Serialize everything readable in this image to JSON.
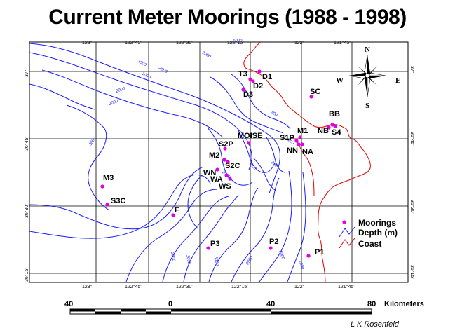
{
  "title": "Current Meter Moorings (1988 - 1998)",
  "credit": "L K Rosenfeld",
  "colors": {
    "mooring": "#e000e0",
    "depth": "#1a1aff",
    "coast": "#e00000"
  },
  "top_ticks": [
    "123°",
    "122°45'",
    "122°30'",
    "122°15'",
    "122°",
    "121°45'"
  ],
  "bottom_ticks": [
    "123°",
    "122°45'",
    "122°30'",
    "122°15'",
    "122°",
    "121°45'"
  ],
  "left_ticks": [
    "37°",
    "36°45'",
    "36°30'",
    "36°15'"
  ],
  "right_ticks": [
    "37°",
    "36°45'",
    "36°30'",
    "36°15'"
  ],
  "compass": {
    "n": "N",
    "s": "S",
    "e": "E",
    "w": "W"
  },
  "contour_labels": [
    "1000",
    "2000",
    "2000",
    "1000",
    "2000",
    "1000",
    "1000",
    "3000",
    "2000",
    "3000",
    "3000",
    "2000",
    "1000",
    "1000",
    "1000",
    "200",
    "200",
    "100",
    "300"
  ],
  "moorings": [
    {
      "name": "D1"
    },
    {
      "name": "T3"
    },
    {
      "name": "D2"
    },
    {
      "name": "D3"
    },
    {
      "name": "SC"
    },
    {
      "name": "BB"
    },
    {
      "name": "NB"
    },
    {
      "name": "S4"
    },
    {
      "name": "M1"
    },
    {
      "name": "S1P"
    },
    {
      "name": "NN"
    },
    {
      "name": "NA"
    },
    {
      "name": "MOISE"
    },
    {
      "name": "S2P"
    },
    {
      "name": "M2"
    },
    {
      "name": "S2C"
    },
    {
      "name": "WN"
    },
    {
      "name": "WA"
    },
    {
      "name": "WS"
    },
    {
      "name": "M3"
    },
    {
      "name": "S3C"
    },
    {
      "name": "F"
    },
    {
      "name": "P3"
    },
    {
      "name": "P2"
    },
    {
      "name": "P1"
    }
  ],
  "legend": {
    "moorings": "Moorings",
    "depth": "Depth (m)",
    "coast": "Coast"
  },
  "scale": {
    "labels": [
      "40",
      "0",
      "40",
      "80"
    ],
    "unit": "Kilometers"
  }
}
